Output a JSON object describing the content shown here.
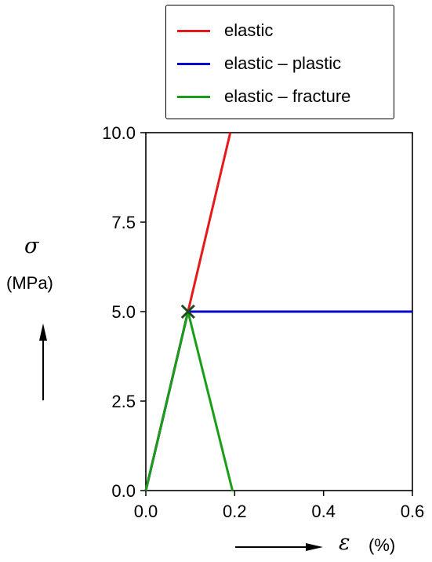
{
  "chart_data": {
    "type": "line",
    "xlabel_symbol": "ε",
    "xlabel_unit": "(%)",
    "ylabel_symbol": "σ",
    "ylabel_unit": "(MPa)",
    "xlim": [
      0,
      0.6
    ],
    "ylim": [
      0,
      10
    ],
    "x_ticks": [
      "0.0",
      "0.2",
      "0.4",
      "0.6"
    ],
    "y_ticks": [
      "0.0",
      "2.5",
      "5.0",
      "7.5",
      "10.0"
    ],
    "x_tick_values": [
      0,
      0.2,
      0.4,
      0.6
    ],
    "y_tick_values": [
      0,
      2.5,
      5,
      7.5,
      10
    ],
    "grid": false,
    "legend_position": "top",
    "series": [
      {
        "name": "elastic",
        "color": "#e41a1c",
        "points": [
          [
            0,
            0
          ],
          [
            0.095,
            5
          ],
          [
            0.19,
            10
          ]
        ]
      },
      {
        "name": "elastic – plastic",
        "color": "#0000d0",
        "points": [
          [
            0,
            0
          ],
          [
            0.095,
            5
          ],
          [
            0.6,
            5
          ]
        ]
      },
      {
        "name": "elastic – fracture",
        "color": "#1a9e1a",
        "points": [
          [
            0,
            0
          ],
          [
            0.095,
            5
          ],
          [
            0.195,
            0
          ]
        ]
      }
    ],
    "markers": [
      {
        "type": "x",
        "x": 0.095,
        "y": 5,
        "color": "#1b4a1b"
      }
    ]
  }
}
